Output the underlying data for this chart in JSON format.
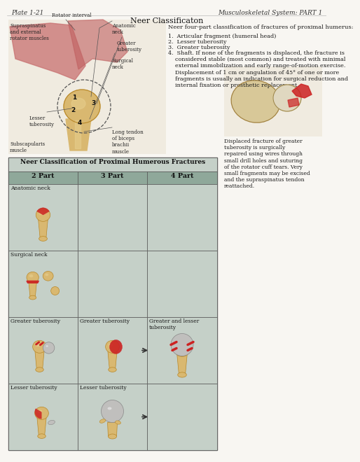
{
  "page_title_left": "Plate 1-21",
  "page_title_right": "Musculoskeletal System: PART 1",
  "section_title": "Neer Classificaton",
  "intro_text": "Neer four-part classification of fractures of proximal humerus:",
  "list_items": [
    "1.  Articular fragment (humeral head)",
    "2.  Lesser tuberosity",
    "3.  Greater tuberosity",
    "4.  Shaft. If none of the fragments is displaced, the fracture is\n    considered stable (most common) and treated with minimal\n    external immobilization and early range-of-motion exercise.\n    Displacement of 1 cm or angulation of 45° of one or more\n    fragments is usually an indication for surgical reduction and\n    internal fixation or prosthetic replacement."
  ],
  "caption_right": "Displaced fracture of greater\ntuberosity is surgically\nrepaired using wires through\nsmall drill holes and suturing\nof the rotator cuff tears. Very\nsmall fragments may be excised\nand the supraspinatus tendon\nreattached.",
  "table_title": "Neer Classification of Proximal Humerous Fractures",
  "col_headers": [
    "2 Part",
    "3 Part",
    "4 Part"
  ],
  "row_cell_labels": [
    [
      "Anatomic neck",
      "",
      ""
    ],
    [
      "Surgical neck",
      "",
      ""
    ],
    [
      "Greater tuberosity",
      "Greater tuberosity",
      "Greater and lesser\ntuberosity"
    ],
    [
      "Lesser tuberosity",
      "Lesser tuberosity",
      ""
    ]
  ],
  "bg_color": "#f8f6f2",
  "table_bg": "#c5d0c8",
  "table_header_bg": "#8fa89a",
  "table_border": "#888888",
  "text_color": "#1a1a1a",
  "bone_color": "#d9b870",
  "bone_dark": "#b8882a",
  "bone_light": "#e8d090",
  "red_color": "#cc2222",
  "grey_color": "#c0bfbd"
}
